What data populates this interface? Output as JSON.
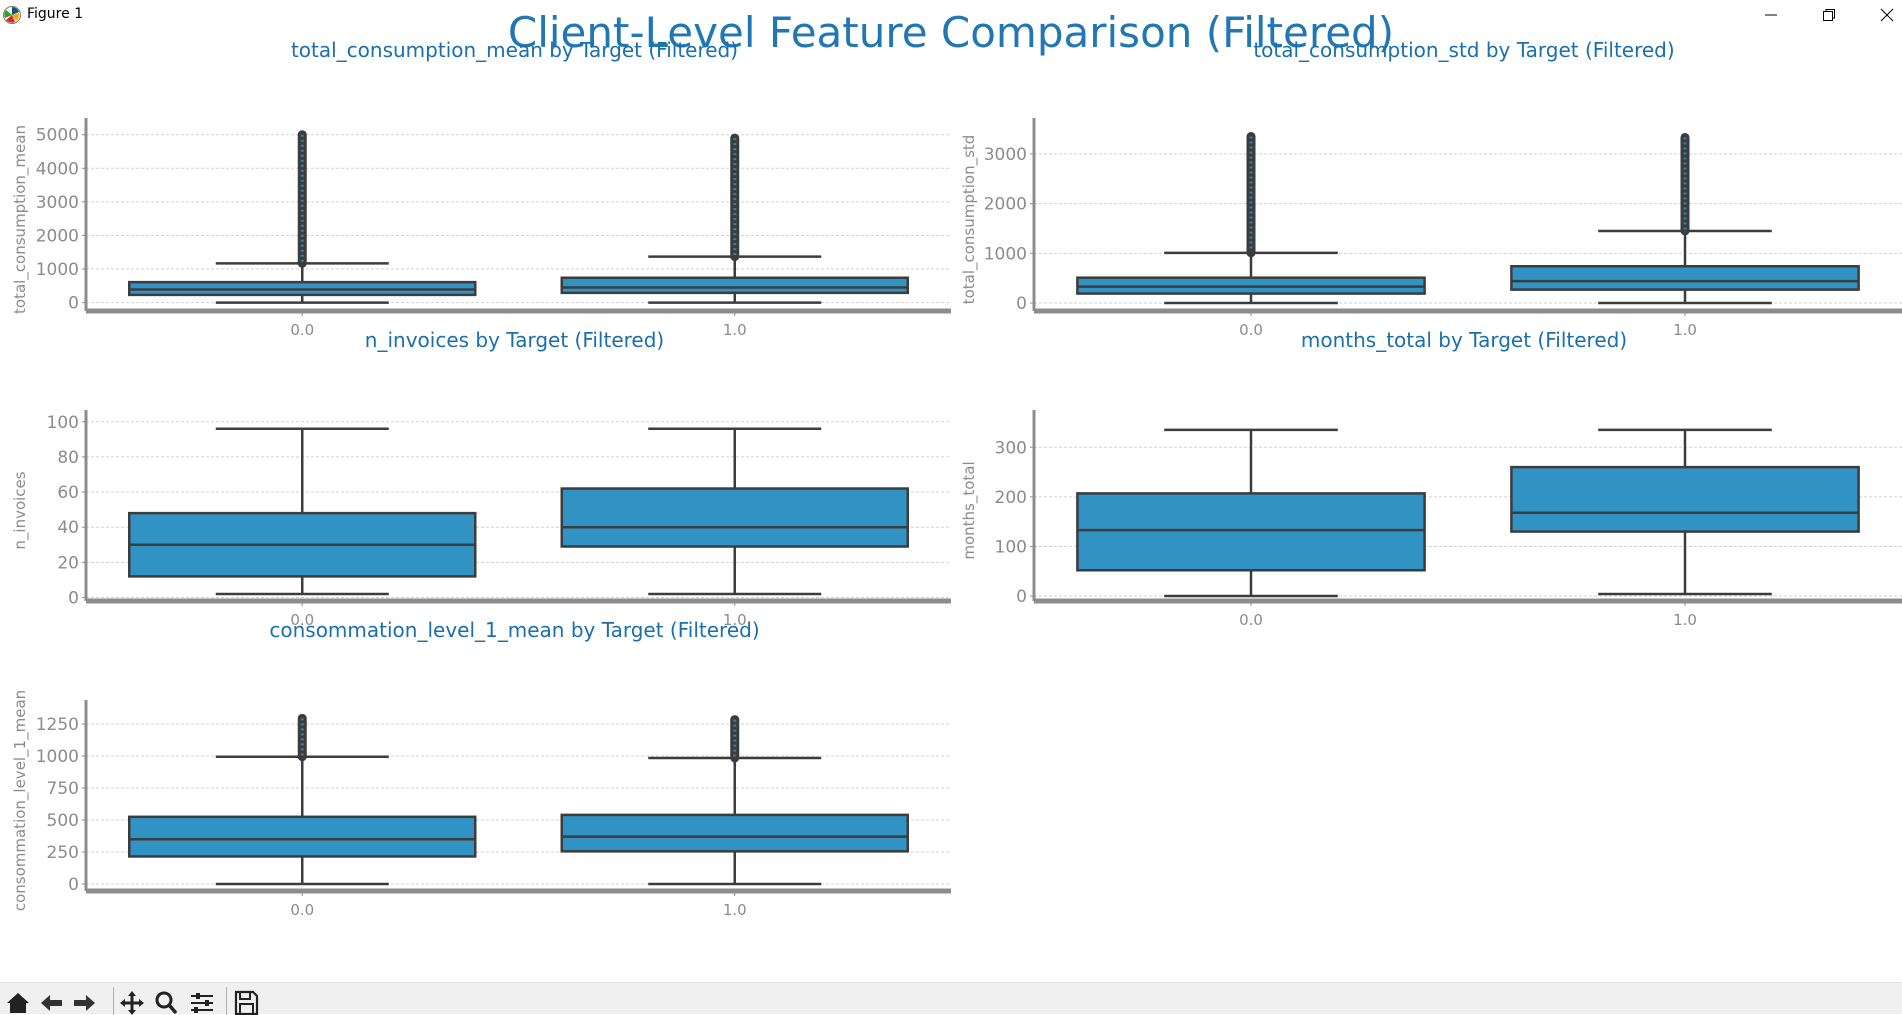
{
  "window": {
    "title": "Figure 1"
  },
  "figure": {
    "suptitle": "Client-Level Feature Comparison (Filtered)",
    "box_color": "#3193c3",
    "line_color": "#3c3c3c",
    "title_color": "#1a6fad",
    "grid_color": "#d2d2d2",
    "tick_color": "#8c8c8c"
  },
  "toolbar": {
    "icons": [
      "home-icon",
      "back-arrow-icon",
      "forward-arrow-icon",
      "pan-icon",
      "zoom-icon",
      "configure-subplots-icon",
      "save-icon"
    ]
  },
  "chart_data": [
    {
      "type": "box",
      "title": "total_consumption_mean by Target (Filtered)",
      "xlabel": "",
      "ylabel": "total_consumption_mean",
      "categories": [
        "0.0",
        "1.0"
      ],
      "ylim": [
        -250,
        5200
      ],
      "yticks": [
        0,
        1000,
        2000,
        3000,
        4000,
        5000
      ],
      "ytick_labels": [
        "0",
        "1000",
        "2000",
        "3000",
        "4000",
        "5000"
      ],
      "boxes": [
        {
          "whislo": 0,
          "q1": 230,
          "med": 390,
          "q3": 610,
          "whishi": 1170,
          "fliers_from": 1170,
          "fliers_to": 5000
        },
        {
          "whislo": 0,
          "q1": 290,
          "med": 450,
          "q3": 740,
          "whishi": 1370,
          "fliers_from": 1370,
          "fliers_to": 4900
        }
      ]
    },
    {
      "type": "box",
      "title": "total_consumption_std by Target (Filtered)",
      "xlabel": "",
      "ylabel": "total_consumption_std",
      "categories": [
        "0.0",
        "1.0"
      ],
      "ylim": [
        -160,
        3520
      ],
      "yticks": [
        0,
        1000,
        2000,
        3000
      ],
      "ytick_labels": [
        "0",
        "1000",
        "2000",
        "3000"
      ],
      "boxes": [
        {
          "whislo": 0,
          "q1": 190,
          "med": 330,
          "q3": 510,
          "whishi": 1010,
          "fliers_from": 1010,
          "fliers_to": 3350
        },
        {
          "whislo": 0,
          "q1": 270,
          "med": 440,
          "q3": 740,
          "whishi": 1450,
          "fliers_from": 1450,
          "fliers_to": 3330
        }
      ]
    },
    {
      "type": "box",
      "title": "n_invoices by Target (Filtered)",
      "xlabel": "",
      "ylabel": "n_invoices",
      "categories": [
        "0.0",
        "1.0"
      ],
      "ylim": [
        -2,
        101
      ],
      "yticks": [
        0,
        20,
        40,
        60,
        80,
        100
      ],
      "ytick_labels": [
        "0",
        "20",
        "40",
        "60",
        "80",
        "100"
      ],
      "boxes": [
        {
          "whislo": 2,
          "q1": 12,
          "med": 30,
          "q3": 48,
          "whishi": 96
        },
        {
          "whislo": 2,
          "q1": 29,
          "med": 40,
          "q3": 62,
          "whishi": 96
        }
      ]
    },
    {
      "type": "box",
      "title": "months_total by Target (Filtered)",
      "xlabel": "",
      "ylabel": "months_total",
      "categories": [
        "0.0",
        "1.0"
      ],
      "ylim": [
        -10,
        355
      ],
      "yticks": [
        0,
        100,
        200,
        300
      ],
      "ytick_labels": [
        "0",
        "100",
        "200",
        "300"
      ],
      "boxes": [
        {
          "whislo": 0,
          "q1": 52,
          "med": 133,
          "q3": 207,
          "whishi": 335
        },
        {
          "whislo": 4,
          "q1": 130,
          "med": 168,
          "q3": 260,
          "whishi": 335
        }
      ]
    },
    {
      "type": "box",
      "title": "consommation_level_1_mean by Target (Filtered)",
      "xlabel": "",
      "ylabel": "consommation_level_1_mean",
      "categories": [
        "0.0",
        "1.0"
      ],
      "ylim": [
        -55,
        1360
      ],
      "yticks": [
        0,
        250,
        500,
        750,
        1000,
        1250
      ],
      "ytick_labels": [
        "0",
        "250",
        "500",
        "750",
        "1000",
        "1250"
      ],
      "boxes": [
        {
          "whislo": 0,
          "q1": 215,
          "med": 350,
          "q3": 525,
          "whishi": 995,
          "fliers_from": 995,
          "fliers_to": 1295
        },
        {
          "whislo": 0,
          "q1": 255,
          "med": 370,
          "q3": 540,
          "whishi": 985,
          "fliers_from": 985,
          "fliers_to": 1285
        }
      ]
    }
  ]
}
